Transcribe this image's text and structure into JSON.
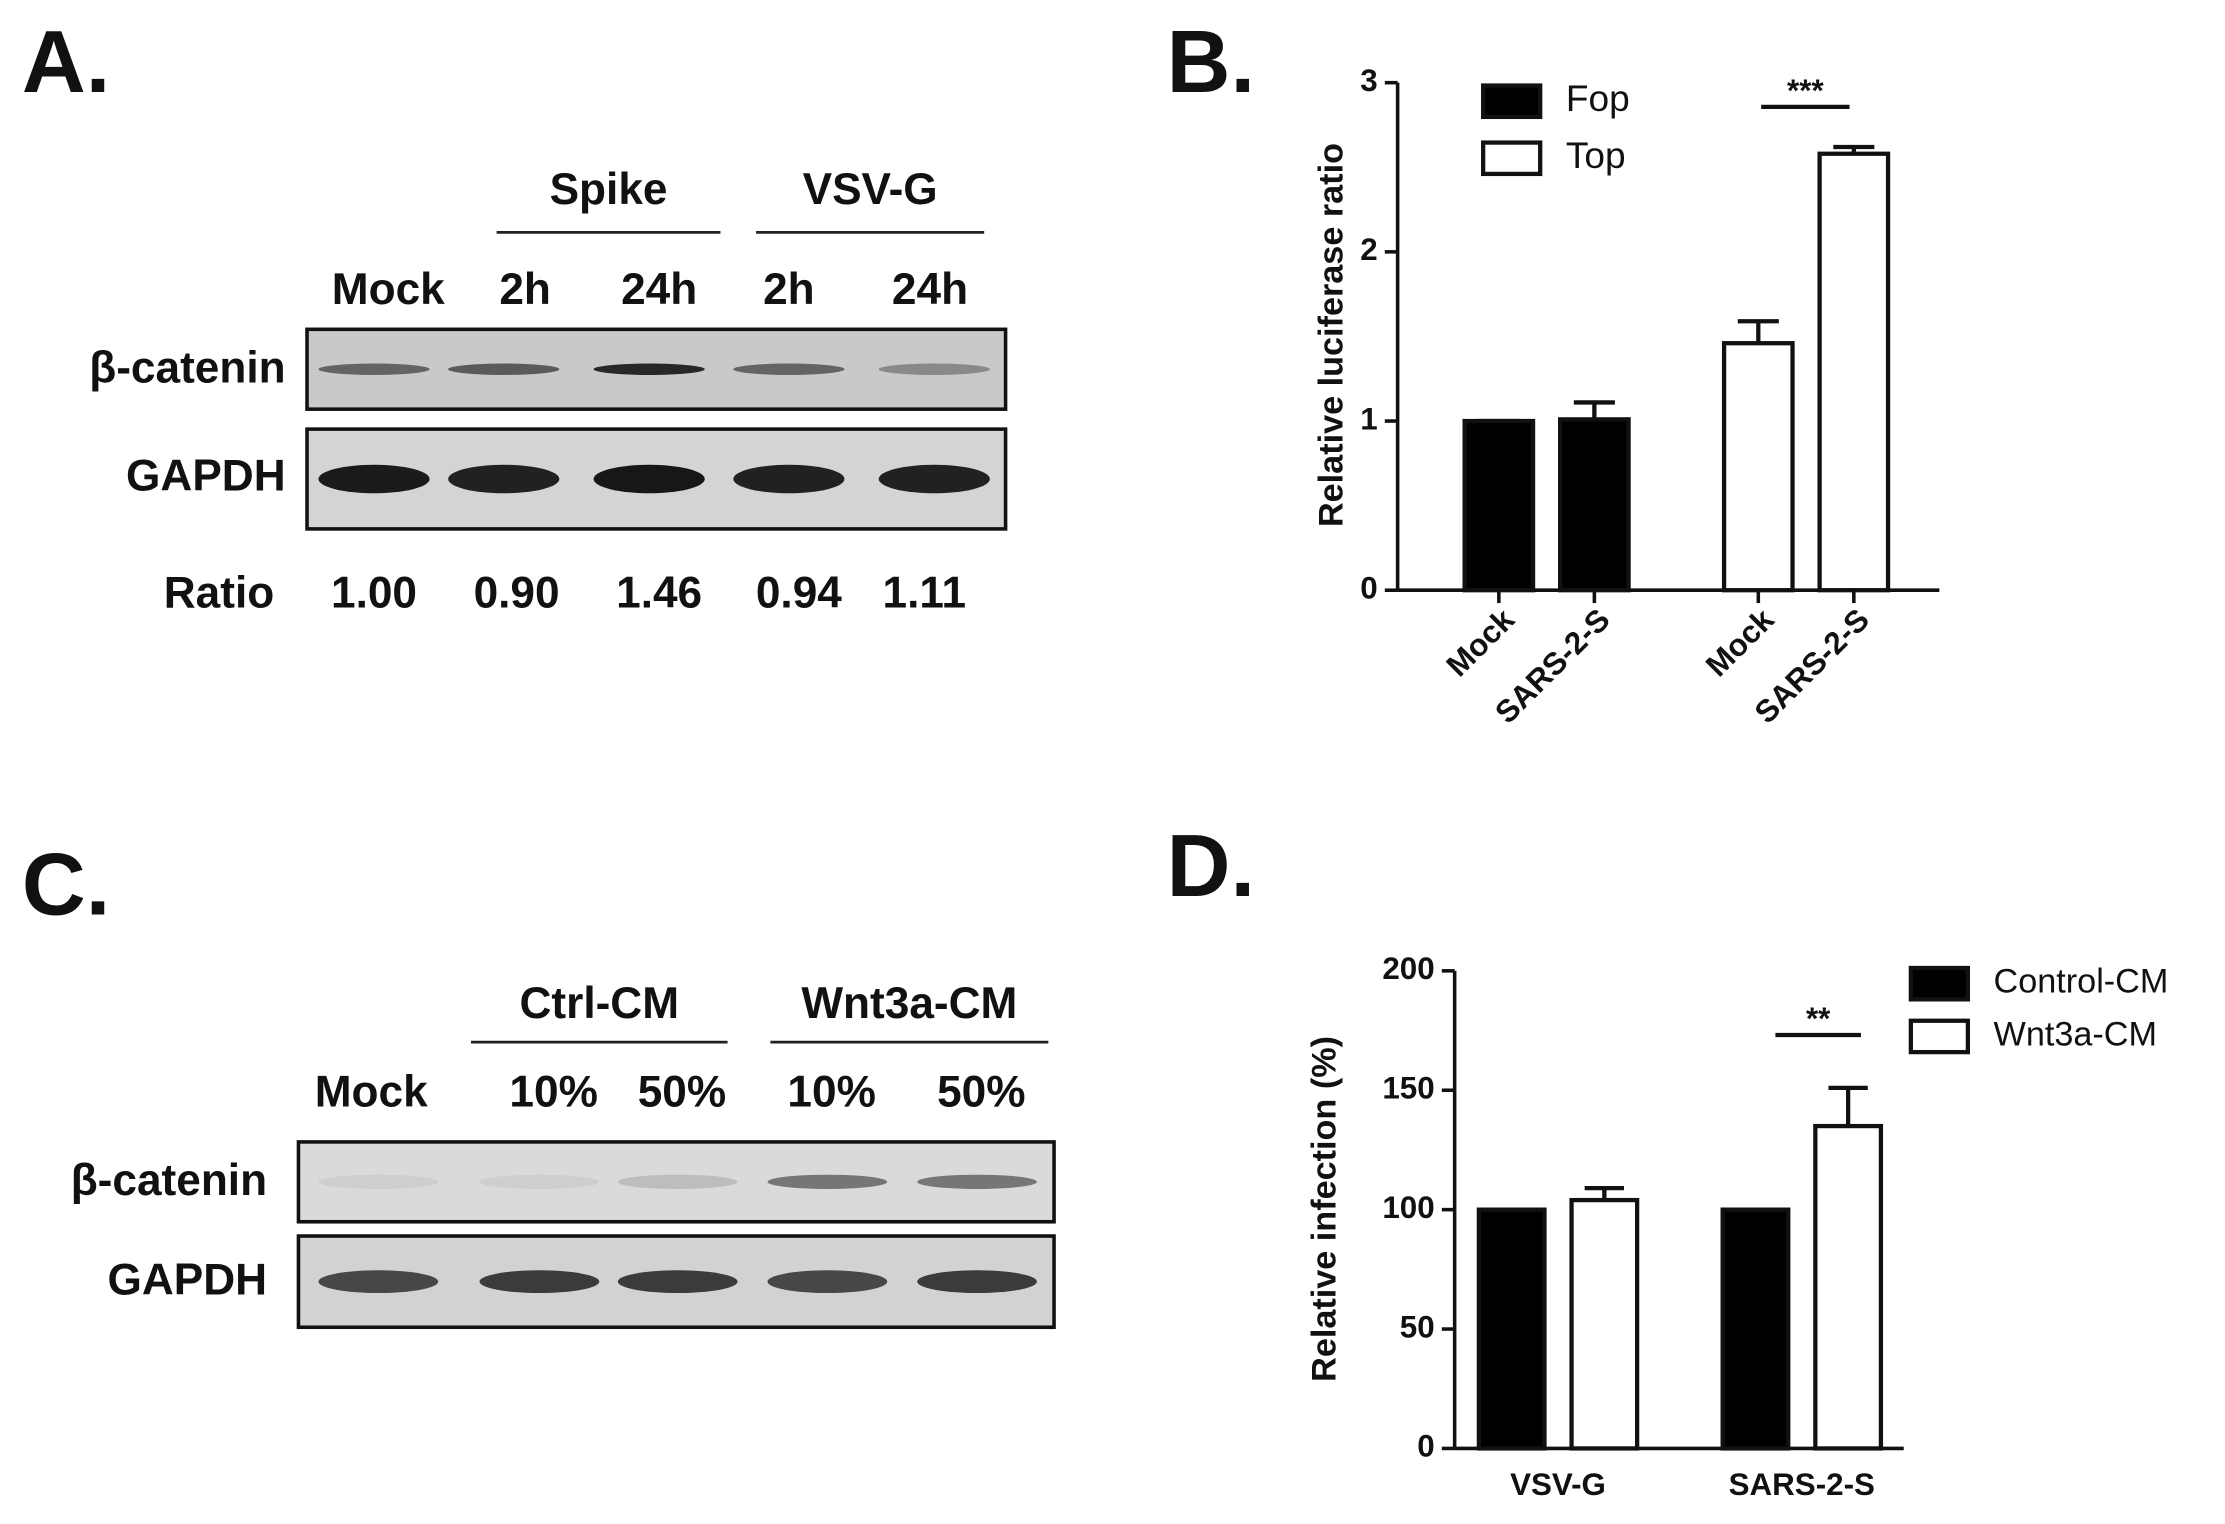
{
  "blot_a": {
    "panel_label": "A.",
    "groups": [
      "Spike",
      "VSV-G"
    ],
    "lanes": [
      "Mock",
      "2h",
      "24h",
      "2h",
      "24h"
    ],
    "rows": [
      "β-catenin",
      "GAPDH"
    ],
    "ratio_label": "Ratio",
    "ratios": [
      "1.00",
      "0.90",
      "1.46",
      "0.94",
      "1.11"
    ]
  },
  "blot_c": {
    "panel_label": "C.",
    "groups": [
      "Ctrl-CM",
      "Wnt3a-CM"
    ],
    "lanes": [
      "Mock",
      "10%",
      "50%",
      "10%",
      "50%"
    ],
    "rows": [
      "β-catenin",
      "GAPDH"
    ]
  },
  "chart_data": [
    {
      "type": "bar",
      "panel_label": "B.",
      "y_label": "Relative luciferase ratio",
      "categories": [
        "Mock",
        "SARS-2-S",
        "Mock",
        "SARS-2-S"
      ],
      "series": [
        {
          "name": "Fop",
          "color": "#000000",
          "values": [
            1.0,
            1.01,
            null,
            null
          ],
          "errors": [
            0,
            0.1,
            null,
            null
          ]
        },
        {
          "name": "Top",
          "color": "#ffffff",
          "values": [
            null,
            null,
            1.46,
            2.58
          ],
          "errors": [
            null,
            null,
            0.13,
            0.04
          ]
        }
      ],
      "ylim": [
        0,
        3
      ],
      "yticks": [
        0,
        1,
        2,
        3
      ],
      "annotations": [
        "***"
      ]
    },
    {
      "type": "bar",
      "panel_label": "D.",
      "y_label": "Relative infection (%)",
      "categories": [
        "VSV-G",
        "SARS-2-S"
      ],
      "series": [
        {
          "name": "Control-CM",
          "color": "#000000",
          "values": [
            100,
            100
          ],
          "errors": [
            0,
            0
          ]
        },
        {
          "name": "Wnt3a-CM",
          "color": "#ffffff",
          "values": [
            104,
            135
          ],
          "errors": [
            5,
            16
          ]
        }
      ],
      "ylim": [
        0,
        200
      ],
      "yticks": [
        0,
        50,
        100,
        150,
        200
      ],
      "annotations": [
        "**"
      ]
    }
  ]
}
